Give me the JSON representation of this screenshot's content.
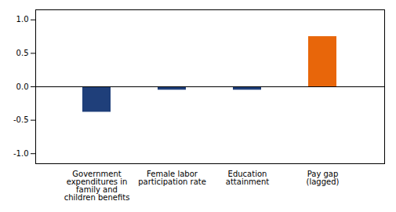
{
  "chart_data": {
    "type": "bar",
    "categories": [
      "Government\nexpenditures in\nfamily and\nchildren benefits",
      "Female labor\nparticipation rate",
      "Education\nattainment",
      "Pay gap\n(lagged)"
    ],
    "values": [
      -0.38,
      -0.05,
      -0.05,
      0.75
    ],
    "colors": [
      "#1f3f7a",
      "#1f3f7a",
      "#1f3f7a",
      "#e8660a"
    ],
    "ylim": [
      -1.15,
      1.15
    ],
    "yticks": [
      {
        "value": -1.0,
        "label": "-1.0"
      },
      -0.5,
      {
        "value": 0.0,
        "label": "0.0"
      },
      0.5,
      {
        "value": 1.0,
        "label": "1.0"
      }
    ],
    "grid": false
  }
}
